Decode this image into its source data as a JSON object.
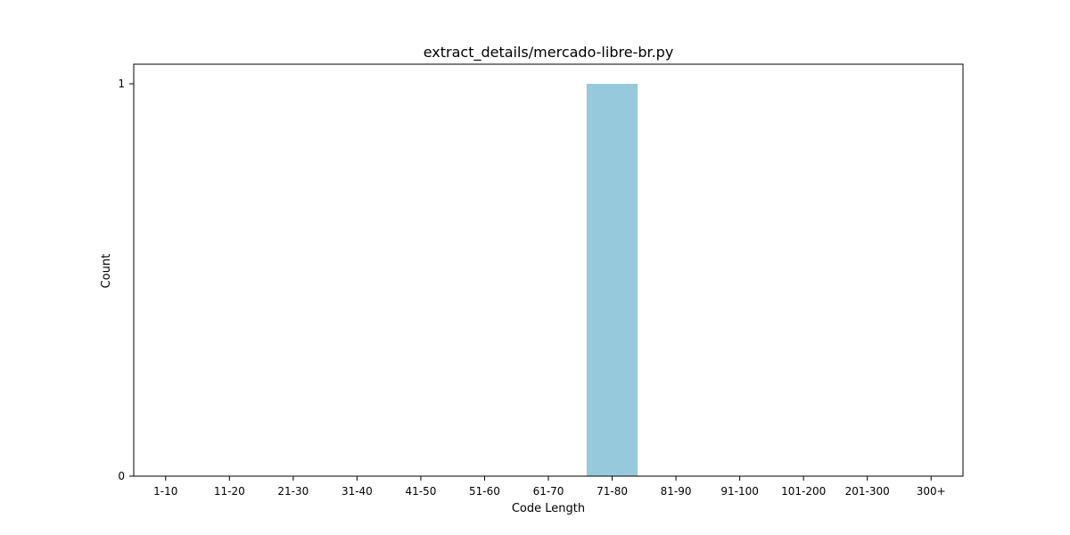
{
  "chart_data": {
    "type": "bar",
    "title": "extract_details/mercado-libre-br.py",
    "xlabel": "Code Length",
    "ylabel": "Count",
    "categories": [
      "1-10",
      "11-20",
      "21-30",
      "31-40",
      "41-50",
      "51-60",
      "61-70",
      "71-80",
      "81-90",
      "91-100",
      "101-200",
      "201-300",
      "300+"
    ],
    "values": [
      0,
      0,
      0,
      0,
      0,
      0,
      0,
      1,
      0,
      0,
      0,
      0,
      0
    ],
    "ylim": [
      0,
      1.05
    ],
    "yticks": [
      0,
      1
    ],
    "bar_color": "#97c9dd",
    "grid": false,
    "legend": "none"
  }
}
